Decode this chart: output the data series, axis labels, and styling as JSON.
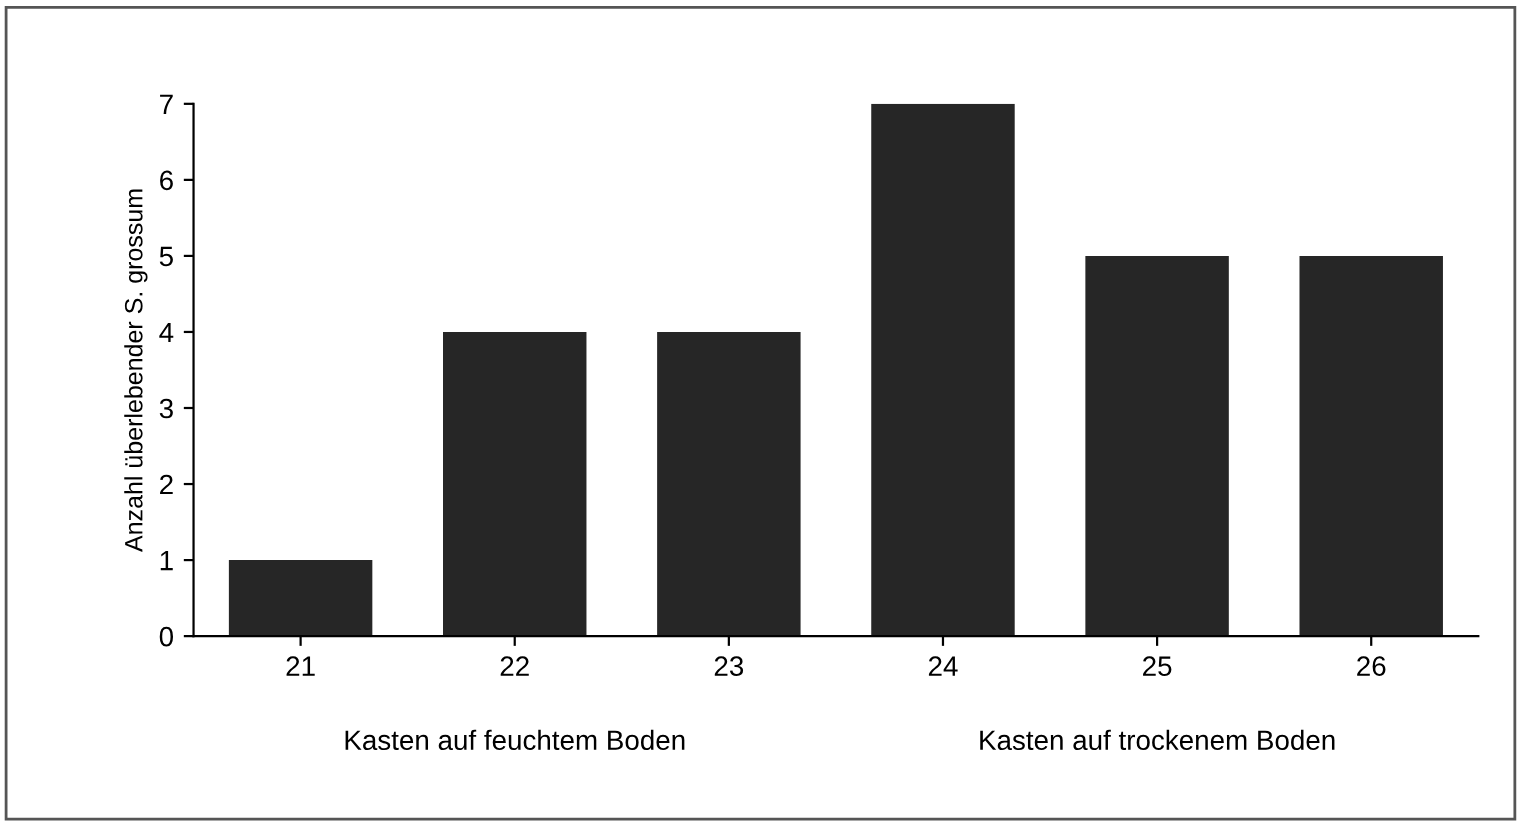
{
  "chart_data": {
    "type": "bar",
    "ylabel": "Anzahl überlebender S. grossum",
    "categories": [
      "21",
      "22",
      "23",
      "24",
      "25",
      "26"
    ],
    "values": [
      1,
      4,
      4,
      7,
      5,
      5
    ],
    "color": "#262626",
    "ylim": [
      0,
      7
    ],
    "yticks": [
      0,
      1,
      2,
      3,
      4,
      5,
      6,
      7
    ],
    "grid": false,
    "legend": false,
    "annotations": [
      "Kasten auf feuchtem Boden",
      "Kasten auf trockenem Boden"
    ]
  }
}
